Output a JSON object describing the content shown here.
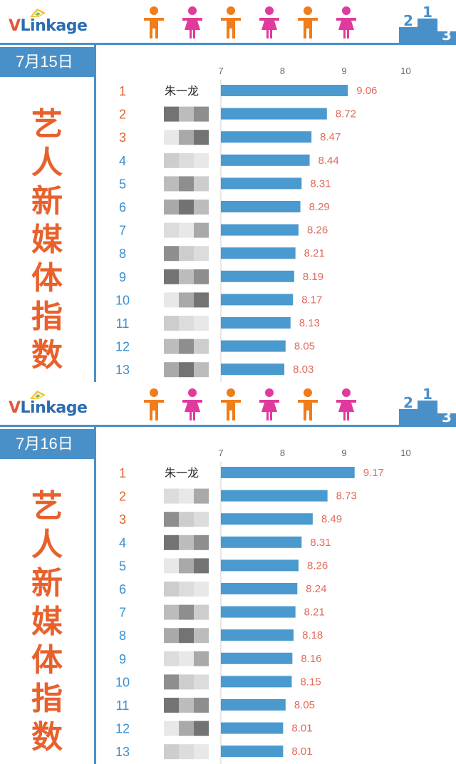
{
  "brand": {
    "logo_v": "V",
    "logo_rest": "Linkage"
  },
  "panels": [
    {
      "date": "7月15日",
      "title_chars": [
        "艺",
        "人",
        "新",
        "媒",
        "体",
        "指",
        "数"
      ]
    },
    {
      "date": "7月16日",
      "title_chars": [
        "艺",
        "人",
        "新",
        "媒",
        "体",
        "指",
        "数"
      ]
    }
  ],
  "podium_numbers": [
    "2",
    "1",
    "3"
  ],
  "colors": {
    "bar": "#4a9ad0",
    "value_label": "#e26a5a",
    "rank_top3": "#e8612c",
    "rank_other": "#3a8fd0",
    "accent_blue": "#4a90c8",
    "person_orange": "#ef7d1a",
    "person_pink": "#e03a9e"
  },
  "chart_data": [
    {
      "type": "bar",
      "orientation": "horizontal",
      "date": "7月15日",
      "title": "艺人新媒体指数",
      "xlim": [
        7,
        10
      ],
      "xticks": [
        "7",
        "8",
        "9",
        "10"
      ],
      "ranks": [
        "1",
        "2",
        "3",
        "4",
        "5",
        "6",
        "7",
        "8",
        "9",
        "10",
        "11",
        "12",
        "13"
      ],
      "names": [
        "朱一龙",
        "",
        "",
        "",
        "",
        "",
        "",
        "",
        "",
        "",
        "",
        "",
        ""
      ],
      "values": [
        9.06,
        8.72,
        8.47,
        8.44,
        8.31,
        8.29,
        8.26,
        8.21,
        8.19,
        8.17,
        8.13,
        8.05,
        8.03
      ],
      "value_labels": [
        "9.06",
        "8.72",
        "8.47",
        "8.44",
        "8.31",
        "8.29",
        "8.26",
        "8.21",
        "8.19",
        "8.17",
        "8.13",
        "8.05",
        "8.03"
      ]
    },
    {
      "type": "bar",
      "orientation": "horizontal",
      "date": "7月16日",
      "title": "艺人新媒体指数",
      "xlim": [
        7,
        10
      ],
      "xticks": [
        "7",
        "8",
        "9",
        "10"
      ],
      "ranks": [
        "1",
        "2",
        "3",
        "4",
        "5",
        "6",
        "7",
        "8",
        "9",
        "10",
        "11",
        "12",
        "13"
      ],
      "names": [
        "朱一龙",
        "",
        "",
        "",
        "",
        "",
        "",
        "",
        "",
        "",
        "",
        "",
        ""
      ],
      "values": [
        9.17,
        8.73,
        8.49,
        8.31,
        8.26,
        8.24,
        8.21,
        8.18,
        8.16,
        8.15,
        8.05,
        8.01,
        8.01
      ],
      "value_labels": [
        "9.17",
        "8.73",
        "8.49",
        "8.31",
        "8.26",
        "8.24",
        "8.21",
        "8.18",
        "8.16",
        "8.15",
        "8.05",
        "8.01",
        "8.01"
      ]
    }
  ]
}
